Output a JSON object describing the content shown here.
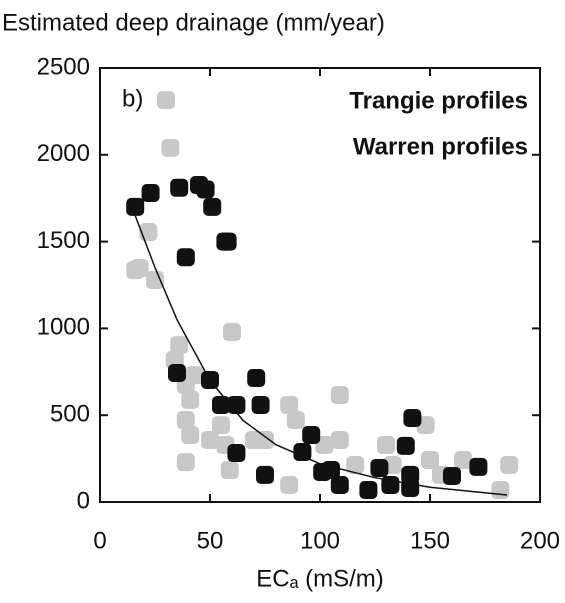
{
  "chart_data": {
    "type": "scatter",
    "title": "Estimated deep drainage (mm/year)",
    "panel_label": "b)",
    "x_label": "ECₐ (mS/m)",
    "xlim": [
      0,
      200
    ],
    "xticks": [
      0,
      50,
      100,
      150,
      200
    ],
    "ylim": [
      0,
      2500
    ],
    "yticks": [
      0,
      500,
      1000,
      1500,
      2000,
      2500
    ],
    "series": [
      {
        "name": "Trangie profiles",
        "color": "#c8c8c8",
        "x": [
          30,
          32,
          22,
          18,
          16,
          60,
          36,
          34,
          39,
          41,
          39,
          41,
          50,
          55,
          39,
          59,
          70,
          75,
          86,
          89,
          86,
          102,
          109,
          109,
          116,
          130,
          133,
          148,
          150,
          155,
          165,
          186,
          182,
          57,
          43,
          25
        ],
        "values": [
          2315,
          2040,
          1555,
          1348,
          1336,
          979,
          904,
          818,
          674,
          588,
          472,
          386,
          357,
          443,
          230,
          184,
          357,
          357,
          559,
          472,
          98,
          328,
          616,
          357,
          213,
          328,
          213,
          443,
          242,
          156,
          242,
          213,
          69,
          328,
          731,
          1279
        ]
      },
      {
        "name": "Warren profiles",
        "color": "#111111",
        "x": [
          16,
          23,
          36,
          45,
          48,
          51,
          57,
          58,
          39,
          35,
          50,
          55,
          62,
          62,
          71,
          73,
          75,
          92,
          96,
          101,
          105,
          109,
          122,
          127,
          132,
          139,
          142,
          141,
          141,
          160,
          172
        ],
        "values": [
          1700,
          1780,
          1810,
          1826,
          1800,
          1700,
          1500,
          1500,
          1410,
          743,
          703,
          559,
          559,
          282,
          714,
          559,
          156,
          288,
          386,
          173,
          184,
          98,
          69,
          196,
          98,
          323,
          484,
          156,
          81,
          150,
          202
        ]
      }
    ],
    "trend_line": {
      "color": "#111111",
      "x": [
        16,
        25,
        35,
        50,
        65,
        80,
        100,
        125,
        150,
        185
      ],
      "values": [
        1650,
        1350,
        1050,
        700,
        470,
        330,
        220,
        140,
        85,
        40
      ]
    }
  }
}
